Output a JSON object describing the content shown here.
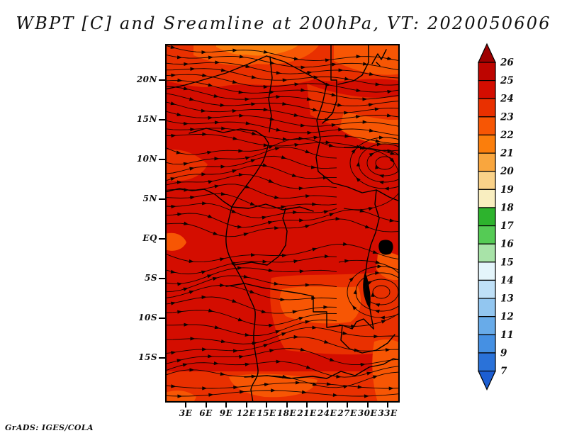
{
  "title": "WBPT [C] and Sreamline at 200hPa, VT: 2020050606",
  "footer": "GrADS: IGES/COLA",
  "axes": {
    "y_labels": [
      "20N",
      "15N",
      "10N",
      "5N",
      "EQ",
      "5S",
      "10S",
      "15S"
    ],
    "x_labels": [
      "3E",
      "6E",
      "9E",
      "12E",
      "15E",
      "18E",
      "21E",
      "24E",
      "27E",
      "30E",
      "33E"
    ]
  },
  "colorbar": {
    "labels": [
      "26",
      "25",
      "24",
      "23",
      "22",
      "21",
      "20",
      "19",
      "18",
      "17",
      "16",
      "15",
      "14",
      "13",
      "12",
      "11",
      "9",
      "7"
    ],
    "colors": [
      "#9e0000",
      "#bd0500",
      "#d40d00",
      "#e93000",
      "#f75604",
      "#fb7e0c",
      "#f9a63e",
      "#fad289",
      "#f9eec0",
      "#2db32d",
      "#55cb55",
      "#a8e3a8",
      "#e4f5fb",
      "#bfe0f7",
      "#92c6f0",
      "#68abe9",
      "#4590e3",
      "#2a72d9",
      "#1c5ed2"
    ]
  },
  "chart_data": {
    "type": "heatmap",
    "title": "WBPT [C] and Sreamline at 200hPa, VT: 2020050606",
    "variable": "WBPT",
    "units": "C",
    "level": "200hPa",
    "valid_time": "2020050606",
    "overlay": "streamlines of 200hPa wind with arrowheads",
    "xlabel": "longitude",
    "ylabel": "latitude",
    "x_ticks": [
      "3E",
      "6E",
      "9E",
      "12E",
      "15E",
      "18E",
      "21E",
      "24E",
      "27E",
      "30E",
      "33E"
    ],
    "y_ticks": [
      "20N",
      "15N",
      "10N",
      "5N",
      "EQ",
      "5S",
      "10S",
      "15S"
    ],
    "lon_range_deg_east": [
      0,
      34.8
    ],
    "lat_range_deg_north": [
      -20.6,
      24.5
    ],
    "shade_levels_c": [
      7,
      9,
      11,
      12,
      13,
      14,
      15,
      16,
      17,
      18,
      19,
      20,
      21,
      22,
      23,
      24,
      25,
      26
    ],
    "palette_low_to_high": [
      "#1c5ed2",
      "#2a72d9",
      "#4590e3",
      "#68abe9",
      "#92c6f0",
      "#bfe0f7",
      "#e4f5fb",
      "#a8e3a8",
      "#55cb55",
      "#2db32d",
      "#f9eec0",
      "#fad289",
      "#f9a63e",
      "#fb7e0c",
      "#f75604",
      "#e93000",
      "#d40d00",
      "#bd0500",
      "#9e0000"
    ],
    "field_estimate": {
      "note": "approximate WBPT (C) read from shading; domain is almost entirely in the 22-25 C range",
      "lons_e": [
        2,
        8,
        14,
        20,
        26,
        32
      ],
      "lats_n": [
        22,
        15,
        7,
        0,
        -8,
        -16
      ],
      "wbpt_c": [
        [
          22,
          22,
          22,
          22,
          23,
          23
        ],
        [
          23,
          23,
          23,
          23,
          23,
          24
        ],
        [
          24,
          24,
          24,
          24,
          24,
          24
        ],
        [
          25,
          25,
          25,
          25,
          24,
          24
        ],
        [
          25,
          25,
          25,
          24,
          24,
          23
        ],
        [
          24,
          24,
          23,
          23,
          23,
          23
        ]
      ]
    },
    "flow_features": [
      "broadly zonal west-to-east flow across the domain",
      "closed anticyclonic gyre hugging the right edge near 32E, 9N",
      "second closed gyre near 31E, 11S",
      "diffluent southwesterly flow over the northern (Sahel) band"
    ]
  }
}
